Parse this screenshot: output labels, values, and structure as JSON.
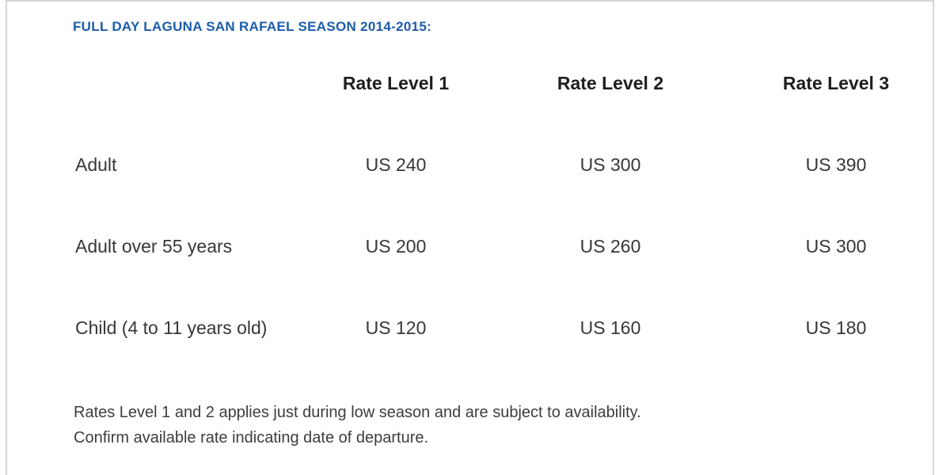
{
  "page": {
    "title": "FULL DAY LAGUNA SAN RAFAEL SEASON 2014-2015:"
  },
  "table": {
    "corner": "",
    "columns": [
      "Rate Level 1",
      "Rate Level 2",
      "Rate Level 3"
    ],
    "rows": [
      {
        "label": "Adult",
        "values": [
          "US 240",
          "US 300",
          "US 390"
        ]
      },
      {
        "label": "Adult over 55 years",
        "values": [
          "US 200",
          "US 260",
          "US 300"
        ]
      },
      {
        "label": "Child (4 to 11 years old)",
        "values": [
          "US 120",
          "US 160",
          "US 180"
        ]
      }
    ]
  },
  "notes": {
    "line1": "Rates Level 1 and 2 applies just during low season and are subject to availability.",
    "line2": "Confirm available rate indicating date of departure."
  },
  "colors": {
    "title_blue": "#1b5dab",
    "header_text": "#1e1e1e",
    "body_text": "#373737",
    "note_text": "#3d3d3d",
    "frame_border": "#d6d6d6"
  }
}
